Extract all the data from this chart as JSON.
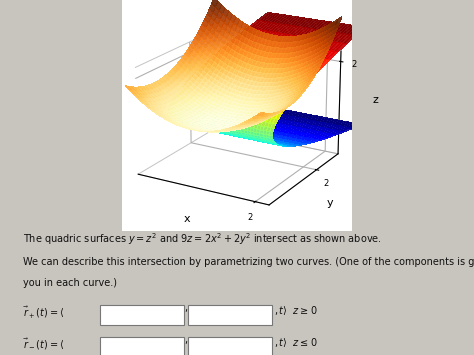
{
  "background_color": "#c8c4be",
  "plot_bg_color": "white",
  "text_line1": "The quadric surfaces $y = z^2$ and $9z = 2x^2 + 2y^2$ intersect as shown above.",
  "text_line2": "We can describe this intersection by parametrizing two curves. (One of the components is given to",
  "text_line2b": "you in each curve.)",
  "axis_label_x": "x",
  "axis_label_y": "y",
  "axis_label_z": "z",
  "elev": 20,
  "azim": -60,
  "N": 35,
  "xlim": [
    -2.5,
    2.5
  ],
  "ylim": [
    -1,
    3.5
  ],
  "zlim": [
    -2.5,
    2.5
  ],
  "surf1_alpha": 0.92,
  "surf2_alpha": 0.92,
  "grid_linewidth": 0.4
}
